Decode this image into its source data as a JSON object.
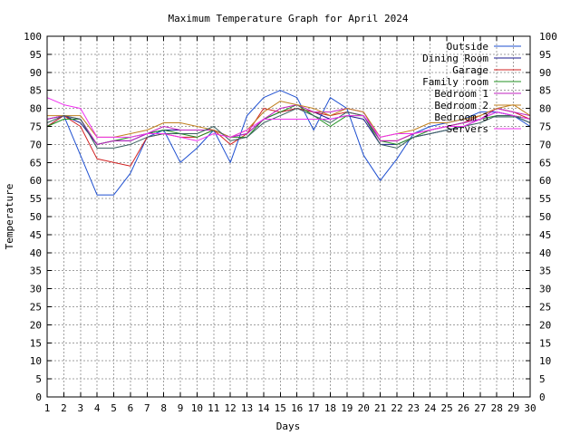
{
  "chart_data": {
    "type": "line",
    "title": "Maximum Temperature Graph for April 2024",
    "xlabel": "Days",
    "ylabel": "Temperature",
    "xlim": [
      1,
      30
    ],
    "ylim": [
      0,
      100
    ],
    "grid": true,
    "legend_position": "top-right",
    "x": [
      1,
      2,
      3,
      4,
      5,
      6,
      7,
      8,
      9,
      10,
      11,
      12,
      13,
      14,
      15,
      16,
      17,
      18,
      19,
      20,
      21,
      22,
      23,
      24,
      25,
      26,
      27,
      28,
      29,
      30
    ],
    "x_ticks": [
      "1",
      "2",
      "3",
      "4",
      "5",
      "6",
      "7",
      "8",
      "9",
      "10",
      "11",
      "12",
      "13",
      "14",
      "15",
      "16",
      "17",
      "18",
      "19",
      "20",
      "21",
      "22",
      "23",
      "24",
      "25",
      "26",
      "27",
      "28",
      "29",
      "30"
    ],
    "y_ticks": [
      "0",
      "5",
      "10",
      "15",
      "20",
      "25",
      "30",
      "35",
      "40",
      "45",
      "50",
      "55",
      "60",
      "65",
      "70",
      "75",
      "80",
      "85",
      "90",
      "95",
      "100"
    ],
    "series": [
      {
        "name": "Outside",
        "color": "#1e4fd0",
        "values": [
          75,
          78,
          67,
          56,
          56,
          62,
          72,
          74,
          65,
          69,
          74,
          65,
          78,
          83,
          85,
          83,
          74,
          83,
          80,
          67,
          60,
          66,
          73,
          75,
          76,
          77,
          79,
          79,
          78,
          75
        ]
      },
      {
        "name": "Dining Room",
        "color": "#1a1a8c",
        "values": [
          77,
          78,
          76,
          70,
          71,
          71,
          73,
          74,
          74,
          74,
          74,
          72,
          73,
          77,
          79,
          80,
          79,
          77,
          78,
          77,
          70,
          70,
          72,
          73,
          74,
          75,
          77,
          79,
          78,
          76
        ]
      },
      {
        "name": "Garage",
        "color": "#d02020",
        "values": [
          75,
          78,
          75,
          66,
          65,
          64,
          72,
          73,
          72,
          72,
          74,
          70,
          73,
          80,
          79,
          80,
          79,
          78,
          79,
          78,
          71,
          71,
          73,
          74,
          75,
          76,
          78,
          80,
          79,
          77
        ]
      },
      {
        "name": "Family room",
        "color": "#209020",
        "values": [
          75,
          77,
          77,
          70,
          71,
          72,
          73,
          74,
          73,
          72,
          74,
          72,
          72,
          77,
          79,
          81,
          78,
          75,
          78,
          78,
          71,
          70,
          72,
          74,
          75,
          76,
          77,
          78,
          78,
          77
        ]
      },
      {
        "name": "Bedroom 1",
        "color": "#c020c0",
        "values": [
          77,
          78,
          77,
          70,
          71,
          71,
          73,
          75,
          74,
          74,
          74,
          72,
          73,
          77,
          80,
          81,
          79,
          79,
          80,
          79,
          71,
          71,
          73,
          74,
          75,
          76,
          77,
          80,
          79,
          78
        ]
      },
      {
        "name": "Bedroom 2",
        "color": "#c08020",
        "values": [
          78,
          78,
          78,
          72,
          72,
          73,
          74,
          76,
          76,
          75,
          74,
          72,
          74,
          79,
          82,
          81,
          80,
          78,
          80,
          79,
          72,
          73,
          74,
          76,
          76,
          77,
          78,
          80,
          81,
          78
        ]
      },
      {
        "name": "Bedroom 3",
        "color": "#3a6060",
        "values": [
          76,
          78,
          77,
          69,
          69,
          70,
          72,
          73,
          73,
          73,
          75,
          71,
          72,
          76,
          78,
          80,
          78,
          76,
          79,
          78,
          70,
          69,
          72,
          73,
          74,
          75,
          76,
          78,
          78,
          76
        ]
      },
      {
        "name": "Servers",
        "color": "#f030f0",
        "values": [
          83,
          81,
          80,
          72,
          72,
          72,
          73,
          73,
          72,
          71,
          73,
          72,
          74,
          77,
          77,
          77,
          77,
          77,
          78,
          78,
          72,
          73,
          73,
          74,
          75,
          75,
          77,
          79,
          78,
          77
        ]
      }
    ]
  }
}
